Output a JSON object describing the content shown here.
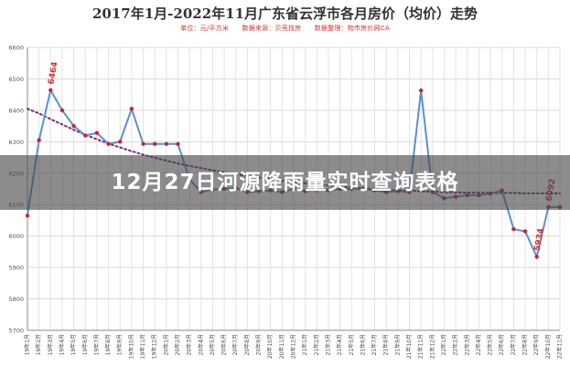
{
  "overlay": {
    "banner_text": "12月27日河源降雨量实时查询表格"
  },
  "colors": {
    "series_line": "#5b8fd6",
    "trend_line": "#7a2e7e",
    "markers": "#c62828",
    "labels": "#d32f2f"
  },
  "chart_data": {
    "type": "line",
    "title": "2017年1月-2022年11月广东省云浮市各月房价（均价）走势",
    "subtitle": "单位：元/平方米　　数据来源：贝壳找房　　数据整理：物市房价网CA",
    "ylim": [
      5700,
      6600
    ],
    "yticks": [
      5700,
      5800,
      5900,
      6000,
      6100,
      6200,
      6300,
      6400,
      6500,
      6600
    ],
    "grid": true,
    "categories": [
      "19年1月",
      "19年2月",
      "19年3月",
      "19年4月",
      "19年5月",
      "19年6月",
      "19年7月",
      "19年8月",
      "19年9月",
      "19年10月",
      "19年11月",
      "19年12月",
      "20年1月",
      "20年2月",
      "20年3月",
      "20年4月",
      "20年5月",
      "20年6月",
      "20年7月",
      "20年8月",
      "20年9月",
      "20年10月",
      "20年11月",
      "20年12月",
      "21年1月",
      "21年2月",
      "21年3月",
      "21年4月",
      "21年5月",
      "21年6月",
      "21年7月",
      "21年8月",
      "21年9月",
      "21年10月",
      "21年11月",
      "21年12月",
      "22年1月",
      "22年2月",
      "22年3月",
      "22年4月",
      "22年5月",
      "22年6月",
      "22年7月",
      "22年8月",
      "22年9月",
      "22年10月",
      "22年11月"
    ],
    "series": [
      {
        "values": [
          6065,
          6305,
          6464,
          6400,
          6350,
          6320,
          6328,
          6293,
          6300,
          6405,
          6293,
          6293,
          6293,
          6293,
          6180,
          6140,
          6148,
          6150,
          6152,
          6140,
          6143,
          6145,
          6140,
          6150,
          6143,
          6145,
          6145,
          6150,
          6150,
          6150,
          6145,
          6140,
          6143,
          6140,
          6463,
          6140,
          6120,
          6125,
          6130,
          6130,
          6135,
          6145,
          6022,
          6015,
          5934,
          6092,
          6092
        ]
      },
      {
        "values": [
          6405,
          6390,
          6372,
          6355,
          6338,
          6322,
          6308,
          6294,
          6282,
          6270,
          6259,
          6249,
          6240,
          6231,
          6223,
          6216,
          6209,
          6203,
          6197,
          6191,
          6186,
          6181,
          6177,
          6172,
          6168,
          6164,
          6161,
          6158,
          6155,
          6152,
          6150,
          6148,
          6146,
          6144,
          6143,
          6141,
          6140,
          6139,
          6138,
          6138,
          6137,
          6137,
          6137,
          6136,
          6136,
          6136,
          6136
        ]
      }
    ],
    "data_labels": [
      {
        "index": 2,
        "text": "6464"
      },
      {
        "index": 44,
        "text": "5934"
      },
      {
        "index": 45,
        "text": "6092"
      }
    ]
  }
}
